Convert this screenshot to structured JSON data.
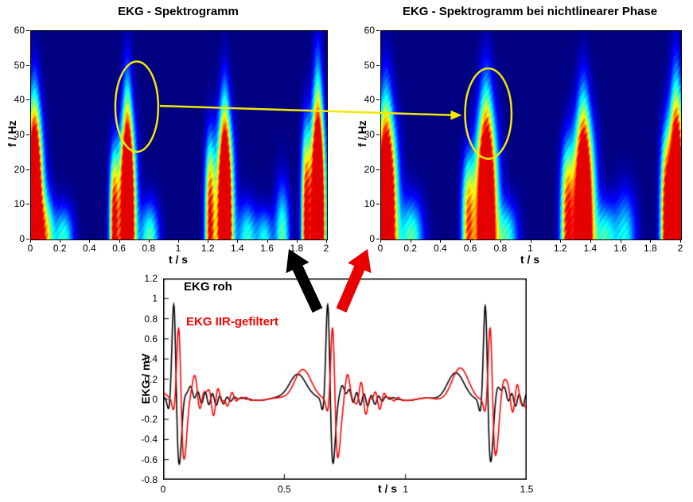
{
  "figure": {
    "background": "#ffffff"
  },
  "annotations": {
    "ellipse_color": "#f2e800",
    "yellow_arrow_color": "#f2e800",
    "black_arrow_color": "#000000",
    "red_arrow_color": "#e80000"
  },
  "chart_data": [
    {
      "id": "spectrogram_left",
      "type": "heatmap",
      "title": "EKG - Spektrogramm",
      "xlabel": "t / s",
      "ylabel": "f / Hz",
      "xlim": [
        0,
        2
      ],
      "ylim": [
        0,
        60
      ],
      "xticks": [
        "0",
        "0.2",
        "0.4",
        "0.6",
        "0.8",
        "1",
        "1.2",
        "1.4",
        "1.6",
        "1.8",
        "2"
      ],
      "yticks": [
        "0",
        "10",
        "20",
        "30",
        "40",
        "50",
        "60"
      ],
      "colormap": "jet",
      "beat_times_s": [
        0.02,
        0.65,
        1.31,
        1.94
      ],
      "blobs": [
        {
          "t": 0.02,
          "st": 0.04,
          "fh": 32,
          "p": 3,
          "amp": 1.5
        },
        {
          "t": 0.02,
          "st": 0.025,
          "fh": 45,
          "p": 4,
          "amp": 0.55
        },
        {
          "t": 0.1,
          "st": 0.04,
          "fh": 12,
          "p": 2,
          "amp": 0.6
        },
        {
          "t": 0.22,
          "st": 0.045,
          "fh": 9,
          "p": 2,
          "amp": 0.45
        },
        {
          "t": 0.56,
          "st": 0.022,
          "fh": 24,
          "p": 3,
          "amp": 0.95
        },
        {
          "t": 0.65,
          "st": 0.038,
          "fh": 31,
          "p": 3,
          "amp": 1.5
        },
        {
          "t": 0.65,
          "st": 0.022,
          "fh": 48,
          "p": 4,
          "amp": 0.6
        },
        {
          "t": 0.8,
          "st": 0.045,
          "fh": 10,
          "p": 2,
          "amp": 0.5
        },
        {
          "t": 1.21,
          "st": 0.024,
          "fh": 27,
          "p": 3,
          "amp": 0.95
        },
        {
          "t": 1.31,
          "st": 0.038,
          "fh": 31,
          "p": 3,
          "amp": 1.5
        },
        {
          "t": 1.31,
          "st": 0.022,
          "fh": 45,
          "p": 4,
          "amp": 0.5
        },
        {
          "t": 1.46,
          "st": 0.045,
          "fh": 10,
          "p": 2,
          "amp": 0.45
        },
        {
          "t": 1.58,
          "st": 0.04,
          "fh": 8,
          "p": 2,
          "amp": 0.4
        },
        {
          "t": 1.7,
          "st": 0.035,
          "fh": 15,
          "p": 2,
          "amp": 0.5
        },
        {
          "t": 1.86,
          "st": 0.022,
          "fh": 30,
          "p": 3,
          "amp": 0.95
        },
        {
          "t": 1.94,
          "st": 0.035,
          "fh": 33,
          "p": 3,
          "amp": 1.5
        },
        {
          "t": 1.94,
          "st": 0.022,
          "fh": 52,
          "p": 4,
          "amp": 0.6
        }
      ],
      "ellipse": {
        "t": 0.72,
        "f": 38,
        "rt": 0.145,
        "rf": 13
      }
    },
    {
      "id": "spectrogram_right",
      "type": "heatmap",
      "title": "EKG - Spektrogramm  bei nichtlinearer Phase",
      "xlabel": "t / s",
      "ylabel": "f / Hz",
      "xlim": [
        0,
        2
      ],
      "ylim": [
        0,
        60
      ],
      "xticks": [
        "0",
        "0.2",
        "0.4",
        "0.6",
        "0.8",
        "1",
        "1.2",
        "1.4",
        "1.6",
        "1.8",
        "2"
      ],
      "yticks": [
        "0",
        "10",
        "20",
        "30",
        "40",
        "50",
        "60"
      ],
      "colormap": "jet",
      "beat_times_s": [
        0.03,
        0.7,
        1.35,
        1.97
      ],
      "blobs": [
        {
          "t": 0.03,
          "st": 0.05,
          "fh": 31,
          "p": 3,
          "amp": 1.45
        },
        {
          "t": 0.03,
          "st": 0.03,
          "fh": 46,
          "p": 4,
          "amp": 0.5
        },
        {
          "t": 0.2,
          "st": 0.055,
          "fh": 11,
          "p": 2,
          "amp": 0.5
        },
        {
          "t": 0.58,
          "st": 0.03,
          "fh": 22,
          "p": 3,
          "amp": 0.8
        },
        {
          "t": 0.7,
          "st": 0.05,
          "fh": 32,
          "p": 3,
          "amp": 1.45
        },
        {
          "t": 0.7,
          "st": 0.03,
          "fh": 47,
          "p": 4,
          "amp": 0.55
        },
        {
          "t": 0.84,
          "st": 0.05,
          "fh": 10,
          "p": 2,
          "amp": 0.45
        },
        {
          "t": 1.24,
          "st": 0.03,
          "fh": 25,
          "p": 3,
          "amp": 0.85
        },
        {
          "t": 1.35,
          "st": 0.05,
          "fh": 31,
          "p": 3,
          "amp": 1.45
        },
        {
          "t": 1.35,
          "st": 0.028,
          "fh": 45,
          "p": 4,
          "amp": 0.5
        },
        {
          "t": 1.5,
          "st": 0.05,
          "fh": 10,
          "p": 2,
          "amp": 0.45
        },
        {
          "t": 1.63,
          "st": 0.05,
          "fh": 13,
          "p": 2,
          "amp": 0.4
        },
        {
          "t": 1.9,
          "st": 0.026,
          "fh": 28,
          "p": 3,
          "amp": 0.85
        },
        {
          "t": 1.97,
          "st": 0.04,
          "fh": 34,
          "p": 3,
          "amp": 1.45
        },
        {
          "t": 1.97,
          "st": 0.025,
          "fh": 50,
          "p": 4,
          "amp": 0.5
        }
      ],
      "ellipse": {
        "t": 0.72,
        "f": 36,
        "rt": 0.155,
        "rf": 13
      }
    },
    {
      "id": "ecg_time_plot",
      "type": "line",
      "title": "",
      "xlabel": "t / s",
      "ylabel": "EKG / mV",
      "xlim": [
        0,
        1.5
      ],
      "ylim": [
        -0.8,
        1.2
      ],
      "xticks": [
        "0",
        "0.5",
        "1",
        "1.5"
      ],
      "yticks": [
        "-0.8",
        "-0.6",
        "-0.4",
        "-0.2",
        "0",
        "0.2",
        "0.4",
        "0.6",
        "0.8",
        "1",
        "1.2"
      ],
      "beat_times_s": [
        0.045,
        0.68,
        1.33
      ],
      "series": [
        {
          "name": "EKG roh",
          "color": "#000000",
          "r_amp": 1.06,
          "s_amp": -0.68,
          "delay": 0.0,
          "pre_amp": 0.26,
          "ring_amp": 0.0,
          "noise_amp": 0.06
        },
        {
          "name": "EKG IIR-gefiltert",
          "color": "#ff0000",
          "r_amp": 0.82,
          "s_amp": -0.62,
          "delay": 0.02,
          "pre_amp": 0.3,
          "ring_amp": 0.12,
          "noise_amp": 0.06
        }
      ]
    }
  ]
}
